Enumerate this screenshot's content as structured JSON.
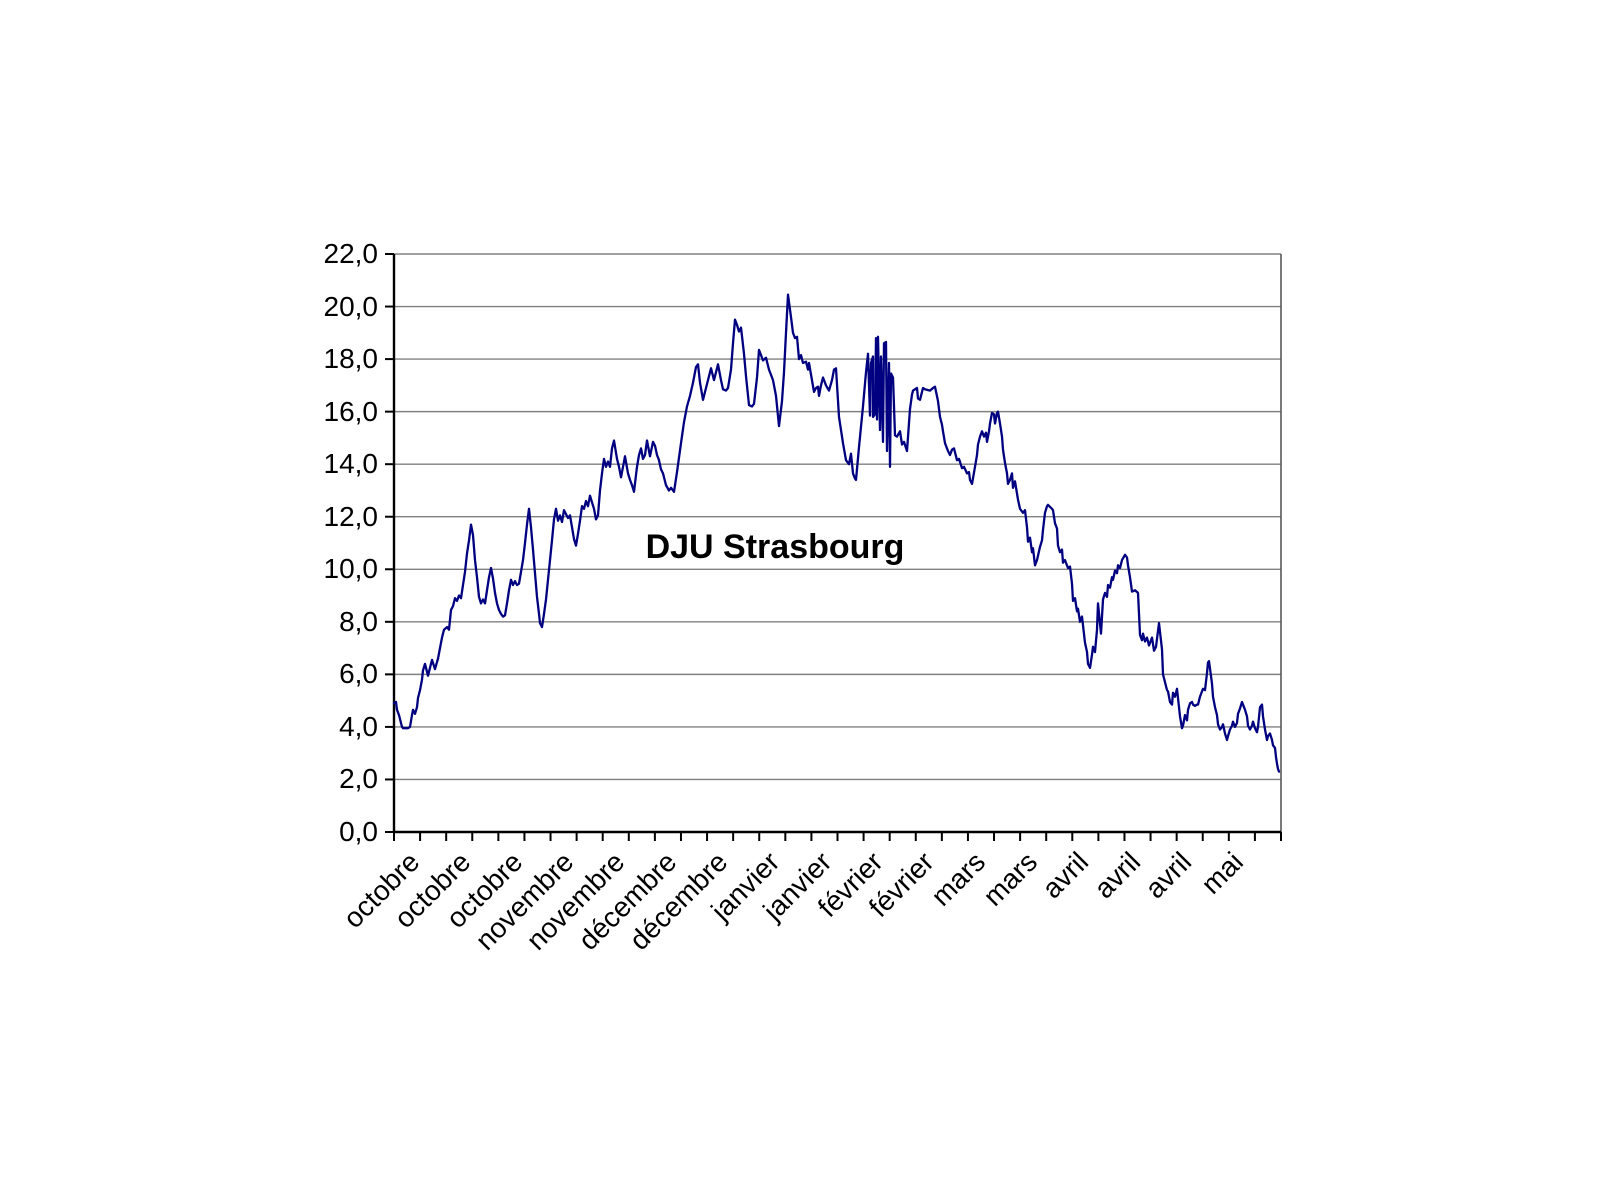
{
  "page": {
    "background": "#ffffff"
  },
  "chart_data": {
    "type": "line",
    "title": "DJU Strasbourg",
    "series": [
      {
        "name": "DJU Strasbourg"
      }
    ],
    "xlabel": "",
    "ylabel": "",
    "ylim": [
      0,
      22
    ],
    "y_tick_step": 2,
    "y_tick_values": [
      0,
      2,
      4,
      6,
      8,
      10,
      12,
      14,
      16,
      18,
      20,
      22
    ],
    "y_tick_labels": [
      "0,0",
      "2,0",
      "4,0",
      "6,0",
      "8,0",
      "10,0",
      "12,0",
      "14,0",
      "16,0",
      "18,0",
      "20,0",
      "22,0"
    ],
    "x_tick_labels": [
      "octobre",
      "octobre",
      "octobre",
      "novembre",
      "novembre",
      "décembre",
      "décembre",
      "janvier",
      "janvier",
      "février",
      "février",
      "mars",
      "mars",
      "avril",
      "avril",
      "avril",
      "mai"
    ],
    "x_minor_tick_count": 35,
    "grid": "horizontal",
    "legend": "none",
    "line_color": "#000080",
    "gridline_color": "#808080",
    "axis_color": "#000000",
    "plot_border_color": "#595959",
    "x_axis_note": "daily heating-degree-day values from octobre to mai; points are [position_px_0_to_887_along_x_axis, value]",
    "points": [
      [
        0,
        4.9
      ],
      [
        2,
        4.95
      ],
      [
        3,
        4.65
      ],
      [
        5,
        4.45
      ],
      [
        7,
        4.15
      ],
      [
        8,
        4.0
      ],
      [
        9,
        3.95
      ],
      [
        14,
        3.95
      ],
      [
        16,
        4.0
      ],
      [
        18,
        4.45
      ],
      [
        19,
        4.65
      ],
      [
        21,
        4.5
      ],
      [
        23,
        4.75
      ],
      [
        24,
        5.1
      ],
      [
        26,
        5.4
      ],
      [
        28,
        5.8
      ],
      [
        29,
        6.15
      ],
      [
        31,
        6.4
      ],
      [
        33,
        6.1
      ],
      [
        34,
        5.95
      ],
      [
        38,
        6.55
      ],
      [
        41,
        6.2
      ],
      [
        44,
        6.6
      ],
      [
        48,
        7.4
      ],
      [
        50,
        7.7
      ],
      [
        53,
        7.8
      ],
      [
        55,
        7.7
      ],
      [
        57,
        8.45
      ],
      [
        59,
        8.6
      ],
      [
        61,
        8.9
      ],
      [
        63,
        8.8
      ],
      [
        65,
        9.0
      ],
      [
        67,
        8.9
      ],
      [
        69,
        9.4
      ],
      [
        71,
        9.9
      ],
      [
        73,
        10.6
      ],
      [
        75,
        11.1
      ],
      [
        77,
        11.7
      ],
      [
        79,
        11.3
      ],
      [
        81,
        10.35
      ],
      [
        83,
        9.7
      ],
      [
        85,
        8.95
      ],
      [
        87,
        8.7
      ],
      [
        89,
        8.85
      ],
      [
        91,
        8.7
      ],
      [
        93,
        9.2
      ],
      [
        95,
        9.7
      ],
      [
        97,
        10.05
      ],
      [
        99,
        9.65
      ],
      [
        101,
        9.1
      ],
      [
        103,
        8.7
      ],
      [
        105,
        8.45
      ],
      [
        107,
        8.3
      ],
      [
        109,
        8.2
      ],
      [
        111,
        8.25
      ],
      [
        113,
        8.7
      ],
      [
        115,
        9.2
      ],
      [
        117,
        9.6
      ],
      [
        119,
        9.4
      ],
      [
        121,
        9.55
      ],
      [
        123,
        9.4
      ],
      [
        125,
        9.45
      ],
      [
        127,
        9.9
      ],
      [
        129,
        10.35
      ],
      [
        131,
        11.0
      ],
      [
        133,
        11.7
      ],
      [
        135,
        12.3
      ],
      [
        137,
        11.6
      ],
      [
        139,
        10.75
      ],
      [
        141,
        9.85
      ],
      [
        143,
        8.95
      ],
      [
        145,
        8.3
      ],
      [
        146,
        7.95
      ],
      [
        148,
        7.8
      ],
      [
        150,
        8.3
      ],
      [
        152,
        8.85
      ],
      [
        154,
        9.6
      ],
      [
        156,
        10.35
      ],
      [
        158,
        11.1
      ],
      [
        160,
        11.9
      ],
      [
        162,
        12.3
      ],
      [
        164,
        11.85
      ],
      [
        166,
        12.05
      ],
      [
        168,
        11.8
      ],
      [
        170,
        12.25
      ],
      [
        172,
        12.1
      ],
      [
        174,
        11.95
      ],
      [
        176,
        12.05
      ],
      [
        178,
        11.6
      ],
      [
        180,
        11.15
      ],
      [
        182,
        10.9
      ],
      [
        184,
        11.35
      ],
      [
        186,
        11.85
      ],
      [
        188,
        12.4
      ],
      [
        190,
        12.3
      ],
      [
        192,
        12.6
      ],
      [
        194,
        12.4
      ],
      [
        196,
        12.8
      ],
      [
        198,
        12.55
      ],
      [
        200,
        12.3
      ],
      [
        202,
        11.9
      ],
      [
        204,
        12.05
      ],
      [
        206,
        13.0
      ],
      [
        208,
        13.65
      ],
      [
        210,
        14.2
      ],
      [
        212,
        13.9
      ],
      [
        214,
        14.1
      ],
      [
        216,
        13.9
      ],
      [
        218,
        14.6
      ],
      [
        220,
        14.9
      ],
      [
        223,
        14.2
      ],
      [
        225,
        13.9
      ],
      [
        227,
        13.5
      ],
      [
        229,
        13.9
      ],
      [
        231,
        14.3
      ],
      [
        234,
        13.65
      ],
      [
        236,
        13.4
      ],
      [
        238,
        13.2
      ],
      [
        240,
        12.95
      ],
      [
        243,
        13.9
      ],
      [
        245,
        14.35
      ],
      [
        247,
        14.6
      ],
      [
        249,
        14.2
      ],
      [
        251,
        14.35
      ],
      [
        253,
        14.9
      ],
      [
        256,
        14.3
      ],
      [
        259,
        14.85
      ],
      [
        261,
        14.7
      ],
      [
        263,
        14.35
      ],
      [
        265,
        14.15
      ],
      [
        267,
        13.8
      ],
      [
        269,
        13.65
      ],
      [
        272,
        13.2
      ],
      [
        275,
        13.0
      ],
      [
        277,
        13.1
      ],
      [
        280,
        12.95
      ],
      [
        283,
        13.7
      ],
      [
        287,
        14.8
      ],
      [
        290,
        15.6
      ],
      [
        293,
        16.2
      ],
      [
        296,
        16.6
      ],
      [
        299,
        17.1
      ],
      [
        302,
        17.7
      ],
      [
        304,
        17.8
      ],
      [
        306,
        17.1
      ],
      [
        309,
        16.45
      ],
      [
        312,
        16.9
      ],
      [
        317,
        17.65
      ],
      [
        320,
        17.2
      ],
      [
        324,
        17.8
      ],
      [
        327,
        17.2
      ],
      [
        329,
        16.85
      ],
      [
        332,
        16.8
      ],
      [
        334,
        16.9
      ],
      [
        337,
        17.6
      ],
      [
        339,
        18.6
      ],
      [
        341,
        19.5
      ],
      [
        343,
        19.3
      ],
      [
        345,
        19.05
      ],
      [
        347,
        19.2
      ],
      [
        350,
        18.2
      ],
      [
        352,
        17.35
      ],
      [
        355,
        16.25
      ],
      [
        358,
        16.2
      ],
      [
        360,
        16.3
      ],
      [
        363,
        17.3
      ],
      [
        365,
        18.35
      ],
      [
        369,
        17.95
      ],
      [
        372,
        18.05
      ],
      [
        375,
        17.6
      ],
      [
        379,
        17.2
      ],
      [
        382,
        16.6
      ],
      [
        385,
        15.45
      ],
      [
        388,
        16.4
      ],
      [
        390,
        17.5
      ],
      [
        392,
        19.0
      ],
      [
        394,
        20.45
      ],
      [
        397,
        19.6
      ],
      [
        399,
        19.0
      ],
      [
        401,
        18.8
      ],
      [
        403,
        18.85
      ],
      [
        405,
        18.0
      ],
      [
        407,
        18.15
      ],
      [
        409,
        17.85
      ],
      [
        412,
        17.9
      ],
      [
        414,
        17.6
      ],
      [
        415,
        17.85
      ],
      [
        420,
        16.75
      ],
      [
        422,
        16.9
      ],
      [
        424,
        16.95
      ],
      [
        425,
        16.6
      ],
      [
        427,
        17.0
      ],
      [
        429,
        17.3
      ],
      [
        432,
        17.0
      ],
      [
        435,
        16.8
      ],
      [
        438,
        17.2
      ],
      [
        440,
        17.6
      ],
      [
        442,
        17.65
      ],
      [
        445,
        15.8
      ],
      [
        449,
        14.8
      ],
      [
        452,
        14.15
      ],
      [
        455,
        14.0
      ],
      [
        457,
        14.4
      ],
      [
        459,
        13.65
      ],
      [
        461,
        13.45
      ],
      [
        462,
        13.4
      ],
      [
        465,
        14.65
      ],
      [
        469,
        16.2
      ],
      [
        472,
        17.5
      ],
      [
        474,
        18.2
      ],
      [
        477,
        17.85
      ],
      [
        479,
        18.1
      ],
      [
        482,
        18.8
      ],
      [
        484,
        18.85
      ],
      [
        487,
        18.1
      ],
      [
        490,
        18.6
      ],
      [
        492,
        18.65
      ],
      [
        495,
        17.85
      ],
      [
        497,
        17.45
      ],
      [
        499,
        17.3
      ],
      [
        476,
        15.85
      ],
      [
        479,
        15.8
      ],
      [
        481,
        15.9
      ],
      [
        483,
        15.7
      ],
      [
        486,
        15.3
      ],
      [
        489,
        14.85
      ],
      [
        493,
        14.5
      ],
      [
        496,
        13.9
      ],
      [
        501,
        15.1
      ],
      [
        503,
        15.05
      ],
      [
        506,
        15.25
      ],
      [
        508,
        14.75
      ],
      [
        510,
        14.85
      ],
      [
        513,
        14.5
      ],
      [
        516,
        16.1
      ],
      [
        518,
        16.65
      ],
      [
        519,
        16.8
      ],
      [
        523,
        16.9
      ],
      [
        524,
        16.5
      ],
      [
        526,
        16.45
      ],
      [
        529,
        16.9
      ],
      [
        531,
        16.85
      ],
      [
        536,
        16.8
      ],
      [
        539,
        16.9
      ],
      [
        541,
        16.95
      ],
      [
        544,
        16.4
      ],
      [
        546,
        15.8
      ],
      [
        548,
        15.5
      ],
      [
        549,
        15.25
      ],
      [
        551,
        14.8
      ],
      [
        553,
        14.6
      ],
      [
        554,
        14.5
      ],
      [
        556,
        14.35
      ],
      [
        558,
        14.55
      ],
      [
        560,
        14.6
      ],
      [
        563,
        14.15
      ],
      [
        565,
        14.2
      ],
      [
        568,
        13.85
      ],
      [
        570,
        13.9
      ],
      [
        573,
        13.65
      ],
      [
        575,
        13.7
      ],
      [
        576,
        13.4
      ],
      [
        578,
        13.25
      ],
      [
        581,
        13.9
      ],
      [
        583,
        14.35
      ],
      [
        584,
        14.75
      ],
      [
        586,
        15.05
      ],
      [
        588,
        15.25
      ],
      [
        590,
        15.05
      ],
      [
        592,
        15.2
      ],
      [
        593,
        14.85
      ],
      [
        595,
        15.25
      ],
      [
        596,
        15.55
      ],
      [
        598,
        15.95
      ],
      [
        600,
        15.9
      ],
      [
        601,
        15.55
      ],
      [
        603,
        15.95
      ],
      [
        604,
        16.0
      ],
      [
        606,
        15.55
      ],
      [
        608,
        15.05
      ],
      [
        609,
        14.55
      ],
      [
        611,
        14.05
      ],
      [
        613,
        13.65
      ],
      [
        614,
        13.25
      ],
      [
        616,
        13.4
      ],
      [
        618,
        13.65
      ],
      [
        619,
        13.1
      ],
      [
        621,
        13.35
      ],
      [
        624,
        12.65
      ],
      [
        626,
        12.3
      ],
      [
        629,
        12.15
      ],
      [
        631,
        12.25
      ],
      [
        633,
        11.6
      ],
      [
        634,
        11.05
      ],
      [
        636,
        11.2
      ],
      [
        638,
        10.65
      ],
      [
        639,
        10.8
      ],
      [
        641,
        10.15
      ],
      [
        643,
        10.35
      ],
      [
        646,
        10.85
      ],
      [
        648,
        11.1
      ],
      [
        649,
        11.5
      ],
      [
        651,
        12.15
      ],
      [
        653,
        12.4
      ],
      [
        654,
        12.45
      ],
      [
        658,
        12.3
      ],
      [
        659,
        12.25
      ],
      [
        661,
        11.75
      ],
      [
        663,
        11.55
      ],
      [
        664,
        10.9
      ],
      [
        666,
        10.65
      ],
      [
        668,
        10.75
      ],
      [
        669,
        10.25
      ],
      [
        671,
        10.35
      ],
      [
        674,
        10.05
      ],
      [
        676,
        10.1
      ],
      [
        678,
        9.45
      ],
      [
        679,
        8.8
      ],
      [
        681,
        8.9
      ],
      [
        683,
        8.4
      ],
      [
        684,
        8.5
      ],
      [
        686,
        8.0
      ],
      [
        688,
        8.2
      ],
      [
        691,
        7.2
      ],
      [
        693,
        6.85
      ],
      [
        694,
        6.4
      ],
      [
        696,
        6.25
      ],
      [
        698,
        6.75
      ],
      [
        699,
        7.05
      ],
      [
        701,
        6.85
      ],
      [
        703,
        7.7
      ],
      [
        704,
        8.7
      ],
      [
        707,
        7.55
      ],
      [
        709,
        8.85
      ],
      [
        711,
        9.1
      ],
      [
        713,
        8.95
      ],
      [
        714,
        9.4
      ],
      [
        716,
        9.3
      ],
      [
        718,
        9.7
      ],
      [
        719,
        9.6
      ],
      [
        721,
        9.95
      ],
      [
        723,
        9.85
      ],
      [
        724,
        10.15
      ],
      [
        726,
        10.05
      ],
      [
        728,
        10.35
      ],
      [
        731,
        10.55
      ],
      [
        733,
        10.45
      ],
      [
        734,
        10.15
      ],
      [
        736,
        9.7
      ],
      [
        738,
        9.15
      ],
      [
        741,
        9.2
      ],
      [
        744,
        9.1
      ],
      [
        745,
        8.3
      ],
      [
        746,
        7.5
      ],
      [
        748,
        7.3
      ],
      [
        749,
        7.55
      ],
      [
        751,
        7.25
      ],
      [
        753,
        7.4
      ],
      [
        755,
        7.1
      ],
      [
        758,
        7.4
      ],
      [
        760,
        6.9
      ],
      [
        762,
        7.05
      ],
      [
        765,
        7.95
      ],
      [
        768,
        6.95
      ],
      [
        769,
        6.0
      ],
      [
        771,
        5.7
      ],
      [
        773,
        5.4
      ],
      [
        774,
        5.35
      ],
      [
        776,
        4.95
      ],
      [
        778,
        4.85
      ],
      [
        779,
        5.3
      ],
      [
        781,
        5.15
      ],
      [
        783,
        5.45
      ],
      [
        784,
        5.1
      ],
      [
        786,
        4.4
      ],
      [
        788,
        3.95
      ],
      [
        789,
        4.05
      ],
      [
        791,
        4.45
      ],
      [
        793,
        4.25
      ],
      [
        794,
        4.65
      ],
      [
        796,
        4.9
      ],
      [
        798,
        4.95
      ],
      [
        799,
        4.85
      ],
      [
        801,
        4.8
      ],
      [
        803,
        4.85
      ],
      [
        804,
        4.85
      ],
      [
        806,
        5.15
      ],
      [
        808,
        5.35
      ],
      [
        809,
        5.45
      ],
      [
        811,
        5.4
      ],
      [
        813,
        6.05
      ],
      [
        814,
        6.45
      ],
      [
        815,
        6.5
      ],
      [
        818,
        5.65
      ],
      [
        819,
        5.15
      ],
      [
        821,
        4.75
      ],
      [
        823,
        4.45
      ],
      [
        824,
        4.1
      ],
      [
        826,
        3.9
      ],
      [
        828,
        4.0
      ],
      [
        829,
        4.1
      ],
      [
        831,
        3.75
      ],
      [
        833,
        3.5
      ],
      [
        834,
        3.65
      ],
      [
        836,
        3.9
      ],
      [
        838,
        4.05
      ],
      [
        839,
        4.2
      ],
      [
        841,
        4.0
      ],
      [
        843,
        4.15
      ],
      [
        844,
        4.5
      ],
      [
        846,
        4.7
      ],
      [
        848,
        4.95
      ],
      [
        849,
        4.85
      ],
      [
        851,
        4.65
      ],
      [
        853,
        4.4
      ],
      [
        854,
        4.05
      ],
      [
        856,
        3.9
      ],
      [
        858,
        4.05
      ],
      [
        859,
        4.2
      ],
      [
        861,
        3.95
      ],
      [
        863,
        3.8
      ],
      [
        864,
        4.0
      ],
      [
        866,
        4.75
      ],
      [
        868,
        4.85
      ],
      [
        869,
        4.4
      ],
      [
        871,
        3.9
      ],
      [
        873,
        3.5
      ],
      [
        874,
        3.65
      ],
      [
        876,
        3.75
      ],
      [
        878,
        3.5
      ],
      [
        879,
        3.3
      ],
      [
        881,
        3.2
      ],
      [
        882,
        2.85
      ],
      [
        883,
        2.6
      ],
      [
        884,
        2.4
      ],
      [
        885,
        2.3
      ]
    ]
  }
}
